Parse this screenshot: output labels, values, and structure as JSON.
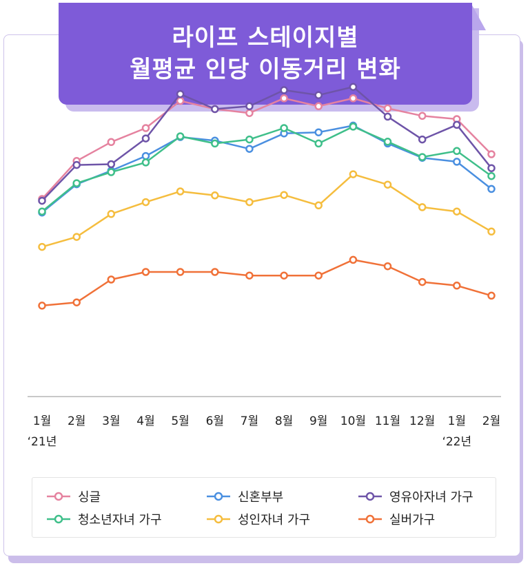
{
  "title": {
    "line1": "라이프 스테이지별",
    "line2": "월평균 인당 이동거리 변화"
  },
  "chart_data": {
    "type": "line",
    "title": "라이프 스테이지별 월평균 인당 이동거리 변화",
    "categories": [
      "1월",
      "2월",
      "3월",
      "4월",
      "5월",
      "6월",
      "7월",
      "8월",
      "9월",
      "10월",
      "11월",
      "12월",
      "1월",
      "2월"
    ],
    "year_labels": [
      {
        "index": 0,
        "label": "‘21년"
      },
      {
        "index": 12,
        "label": "‘22년"
      }
    ],
    "ylim": [
      0,
      100
    ],
    "y_axis_visible": false,
    "grid": false,
    "legend_position": "bottom",
    "series": [
      {
        "name": "싱글",
        "color": "#e5829f",
        "values": [
          55.2,
          65.8,
          71.1,
          75.0,
          82.6,
          80.3,
          79.2,
          83.3,
          81.1,
          83.3,
          80.5,
          78.4,
          77.5,
          67.7
        ]
      },
      {
        "name": "신혼부부",
        "color": "#4a8fe0",
        "values": [
          51.4,
          59.3,
          63.1,
          67.2,
          72.5,
          71.5,
          69.2,
          73.5,
          73.8,
          75.7,
          70.7,
          66.7,
          65.6,
          58.0
        ]
      },
      {
        "name": "영유아자녀 가구",
        "color": "#6e54a8",
        "values": [
          54.7,
          64.7,
          64.9,
          72.1,
          84.5,
          80.3,
          81.1,
          85.6,
          84.2,
          86.5,
          78.2,
          71.8,
          75.9,
          63.8
        ]
      },
      {
        "name": "청소년자녀 가구",
        "color": "#3fbf8a",
        "values": [
          51.7,
          59.6,
          62.7,
          65.4,
          72.7,
          70.7,
          71.8,
          75.0,
          70.7,
          75.4,
          71.2,
          66.9,
          68.6,
          61.6
        ]
      },
      {
        "name": "성인자녀 가구",
        "color": "#f5bd3e",
        "values": [
          41.8,
          44.6,
          51.0,
          54.3,
          57.3,
          56.2,
          54.3,
          56.3,
          53.4,
          62.1,
          59.2,
          52.9,
          51.7,
          46.1
        ]
      },
      {
        "name": "실버가구",
        "color": "#f07138",
        "values": [
          25.4,
          26.3,
          32.7,
          34.8,
          34.8,
          34.8,
          33.8,
          33.8,
          33.8,
          38.2,
          36.4,
          32.0,
          31.0,
          28.2
        ]
      }
    ]
  }
}
